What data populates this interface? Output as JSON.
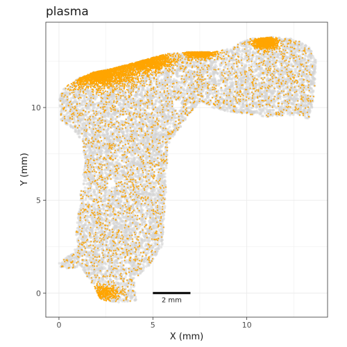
{
  "chart_data": {
    "type": "scatter",
    "title": "plasma",
    "xlabel": "X (mm)",
    "ylabel": "Y (mm)",
    "xlim": [
      -0.7,
      14.3
    ],
    "ylim": [
      -1.3,
      14.6
    ],
    "x_ticks": [
      0,
      5,
      10
    ],
    "y_ticks": [
      0,
      5,
      10
    ],
    "grid": true,
    "series": [
      {
        "color": "#d3d3d3"
      },
      {
        "color": "#ffa500"
      }
    ],
    "tissue_region": {
      "outline": [
        [
          0.1,
          1.3
        ],
        [
          1.2,
          1.4
        ],
        [
          1.5,
          0.9
        ],
        [
          1.9,
          0.3
        ],
        [
          2.2,
          -0.4
        ],
        [
          3.2,
          -0.5
        ],
        [
          4.1,
          -0.4
        ],
        [
          4.0,
          0.8
        ],
        [
          4.6,
          1.2
        ],
        [
          5.5,
          2.5
        ],
        [
          5.7,
          5.5
        ],
        [
          5.8,
          8.0
        ],
        [
          6.7,
          9.3
        ],
        [
          7.5,
          10.3
        ],
        [
          8.4,
          9.9
        ],
        [
          9.6,
          9.7
        ],
        [
          11.0,
          9.5
        ],
        [
          12.5,
          9.6
        ],
        [
          13.3,
          9.4
        ],
        [
          13.6,
          10.5
        ],
        [
          13.7,
          12.5
        ],
        [
          13.3,
          13.3
        ],
        [
          12.5,
          13.7
        ],
        [
          11.3,
          13.8
        ],
        [
          10.0,
          13.7
        ],
        [
          9.2,
          13.2
        ],
        [
          8.2,
          13.0
        ],
        [
          6.9,
          13.0
        ],
        [
          5.7,
          12.9
        ],
        [
          4.3,
          12.5
        ],
        [
          2.8,
          12.1
        ],
        [
          1.8,
          11.9
        ],
        [
          1.1,
          11.6
        ],
        [
          0.3,
          11.1
        ],
        [
          0.0,
          10.5
        ],
        [
          0.1,
          9.3
        ],
        [
          0.7,
          8.9
        ],
        [
          1.2,
          8.2
        ],
        [
          1.4,
          7.1
        ],
        [
          1.1,
          5.0
        ],
        [
          0.9,
          3.2
        ],
        [
          1.0,
          2.5
        ],
        [
          0.5,
          2.0
        ],
        [
          0.0,
          1.6
        ]
      ],
      "holes": [
        {
          "x": 2.8,
          "y": 5.9,
          "r": 0.2
        },
        {
          "x": 6.3,
          "y": 10.1,
          "r": 0.25
        },
        {
          "x": 2.1,
          "y": 10.4,
          "r": 0.15
        }
      ]
    },
    "plasma_enriched_regions": [
      {
        "x": 2.0,
        "y": 12.1,
        "spread": 0.65,
        "weight": 0.35
      },
      {
        "x": 4.5,
        "y": 12.6,
        "spread": 0.45,
        "weight": 0.25
      },
      {
        "x": 7.5,
        "y": 13.2,
        "spread": 0.3,
        "weight": 0.15
      },
      {
        "x": 11.0,
        "y": 13.5,
        "spread": 0.25,
        "weight": 0.18
      },
      {
        "x": 2.4,
        "y": 0.0,
        "spread": 0.3,
        "weight": 0.07
      }
    ],
    "scale_bar": {
      "x_start": 5,
      "x_end": 7,
      "y": 0,
      "label": "2 mm"
    }
  }
}
